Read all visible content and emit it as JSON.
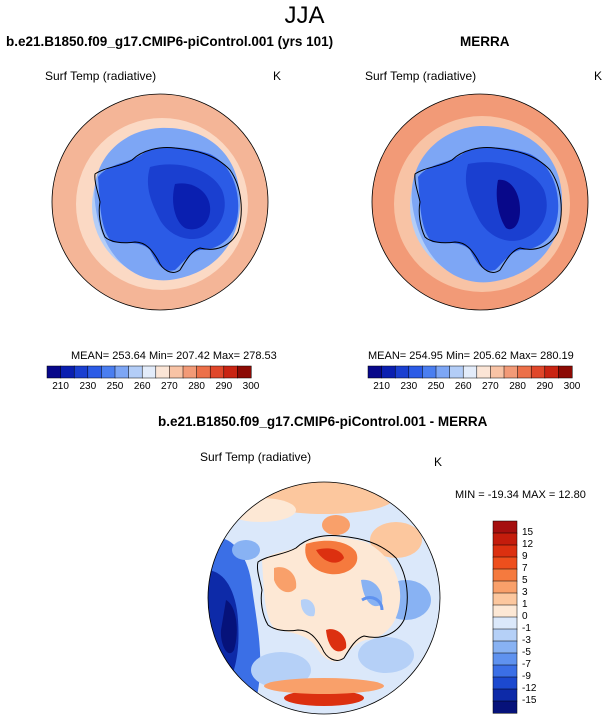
{
  "season": "JJA",
  "panels": {
    "model": {
      "title": "b.e21.B1850.f09_g17.CMIP6-piControl.001 (yrs 101)",
      "variable": "Surf Temp (radiative)",
      "units": "K",
      "stats": "MEAN= 253.64   Min= 207.42   Max= 278.53"
    },
    "obs": {
      "title": "MERRA",
      "variable": "Surf Temp (radiative)",
      "units": "K",
      "stats": "MEAN= 254.95   Min= 205.62   Max= 280.19"
    },
    "diff": {
      "title": "b.e21.B1850.f09_g17.CMIP6-piControl.001 - MERRA",
      "variable": "Surf Temp (radiative)",
      "units": "K",
      "stats": "MIN = -19.34  MAX =  12.80"
    }
  },
  "abs_colorbar": {
    "labels": [
      "210",
      "230",
      "250",
      "260",
      "270",
      "280",
      "290",
      "300"
    ],
    "colors": [
      "#08088a",
      "#0a1fb0",
      "#1a3fd0",
      "#2b5be6",
      "#4a7ef0",
      "#7da6f5",
      "#b3cdf7",
      "#e3ecfa",
      "#fbe5d6",
      "#f8c3a5",
      "#f29a77",
      "#ec7049",
      "#e0472a",
      "#c92412",
      "#8c0a04"
    ]
  },
  "diff_colorbar": {
    "labels": [
      "15",
      "12",
      "9",
      "7",
      "5",
      "3",
      "1",
      "0",
      "-1",
      "-3",
      "-5",
      "-7",
      "-9",
      "-12",
      "-15"
    ],
    "colors": [
      "#a50f0f",
      "#c41c0c",
      "#dc3010",
      "#ee4f1d",
      "#f57a3e",
      "#f9a06a",
      "#fcc79e",
      "#fde8d5",
      "#dbe8fa",
      "#b5d0f7",
      "#88b2f3",
      "#5f92ef",
      "#3b6fe6",
      "#1c49cf",
      "#0d2aa8",
      "#06127a"
    ]
  },
  "colors": {
    "ocean_warm": "#f4b597",
    "ocean_mid": "#fbd9c4",
    "ice_blue": "#5f92ef",
    "continent_deep": "#0a1fb0",
    "coastline": "#000000"
  }
}
